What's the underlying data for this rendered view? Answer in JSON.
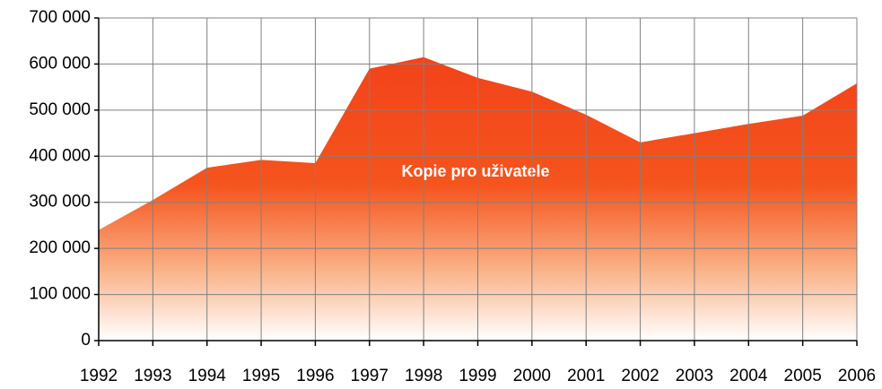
{
  "chart_data": {
    "type": "area",
    "categories": [
      "1992",
      "1993",
      "1994",
      "1995",
      "1996",
      "1997",
      "1998",
      "1999",
      "2000",
      "2001",
      "2002",
      "2003",
      "2004",
      "2005",
      "2006"
    ],
    "series": [
      {
        "name": "Kopie pro uživatele",
        "color": "#f2431a",
        "values": [
          240000,
          305000,
          375000,
          392000,
          385000,
          590000,
          615000,
          570000,
          540000,
          490000,
          430000,
          450000,
          470000,
          488000,
          558000
        ]
      }
    ],
    "ylim": [
      0,
      700000
    ],
    "yticks": [
      0,
      {
        "value": 100000,
        "label": "100 000"
      },
      {
        "value": 200000,
        "label": "200 000"
      },
      {
        "value": 300000,
        "label": "300 000"
      },
      {
        "value": 400000,
        "label": "400 000"
      },
      {
        "value": 500000,
        "label": "500 000"
      },
      {
        "value": 600000,
        "label": "600 000"
      },
      {
        "value": 700000,
        "label": "700 000"
      }
    ],
    "grid": true
  }
}
